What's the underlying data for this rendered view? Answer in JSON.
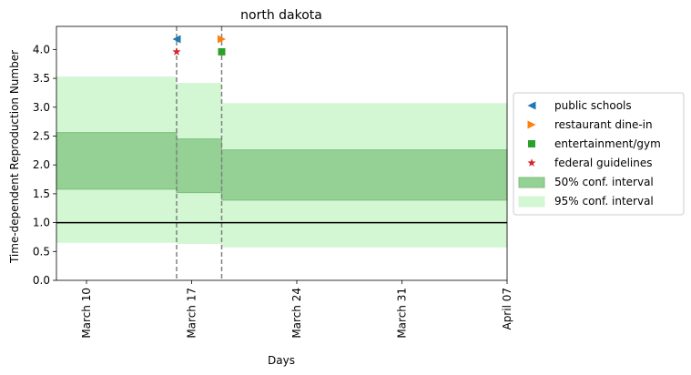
{
  "chart_data": {
    "type": "line",
    "title": "north dakota",
    "xlabel": "Days",
    "ylabel": "Time-dependent Reproduction Number",
    "xlim": [
      "2020-03-08",
      "2020-04-07"
    ],
    "ylim": [
      0,
      4.4
    ],
    "x_ticks": [
      {
        "date": "2020-03-10",
        "label": "March 10"
      },
      {
        "date": "2020-03-17",
        "label": "March 17"
      },
      {
        "date": "2020-03-24",
        "label": "March 24"
      },
      {
        "date": "2020-03-31",
        "label": "March 31"
      },
      {
        "date": "2020-04-07",
        "label": "April 07"
      }
    ],
    "y_ticks": [
      0.0,
      0.5,
      1.0,
      1.5,
      2.0,
      2.5,
      3.0,
      3.5,
      4.0
    ],
    "reference_line": 1.0,
    "intervention_dates": [
      "2020-03-16",
      "2020-03-19"
    ],
    "intervals": [
      {
        "start": "2020-03-08",
        "end": "2020-03-16",
        "ci50": [
          1.58,
          2.56
        ],
        "ci95": [
          0.65,
          3.53
        ]
      },
      {
        "start": "2020-03-16",
        "end": "2020-03-19",
        "ci50": [
          1.52,
          2.45
        ],
        "ci95": [
          0.63,
          3.42
        ]
      },
      {
        "start": "2020-03-19",
        "end": "2020-04-07",
        "ci50": [
          1.39,
          2.26
        ],
        "ci95": [
          0.57,
          3.07
        ]
      }
    ],
    "markers": [
      {
        "name": "public schools",
        "date": "2020-03-16",
        "y": 4.18,
        "shape": "triangle-left",
        "color": "#1f77b4"
      },
      {
        "name": "restaurant dine-in",
        "date": "2020-03-19",
        "y": 4.18,
        "shape": "triangle-right",
        "color": "#ff7f0e"
      },
      {
        "name": "entertainment/gym",
        "date": "2020-03-19",
        "y": 3.96,
        "shape": "square",
        "color": "#2ca02c"
      },
      {
        "name": "federal guidelines",
        "date": "2020-03-16",
        "y": 3.96,
        "shape": "star",
        "color": "#d62728"
      }
    ],
    "legend": {
      "placement": "center-right-outside",
      "entries": [
        {
          "label": "public schools",
          "kind": "triangle-left",
          "color": "#1f77b4"
        },
        {
          "label": "restaurant dine-in",
          "kind": "triangle-right",
          "color": "#ff7f0e"
        },
        {
          "label": "entertainment/gym",
          "kind": "square",
          "color": "#2ca02c"
        },
        {
          "label": "federal guidelines",
          "kind": "star",
          "color": "#d62728"
        },
        {
          "label": "50% conf. interval",
          "kind": "patch",
          "color": "#95d195"
        },
        {
          "label": "95% conf. interval",
          "kind": "patch",
          "color": "#d3f6d3"
        }
      ]
    },
    "colors": {
      "ci50": "#95d195",
      "ci50_edge": "#7cbf7c",
      "ci95": "#d3f6d3",
      "reference_line": "#000000",
      "intervention_line": "#808080"
    }
  }
}
